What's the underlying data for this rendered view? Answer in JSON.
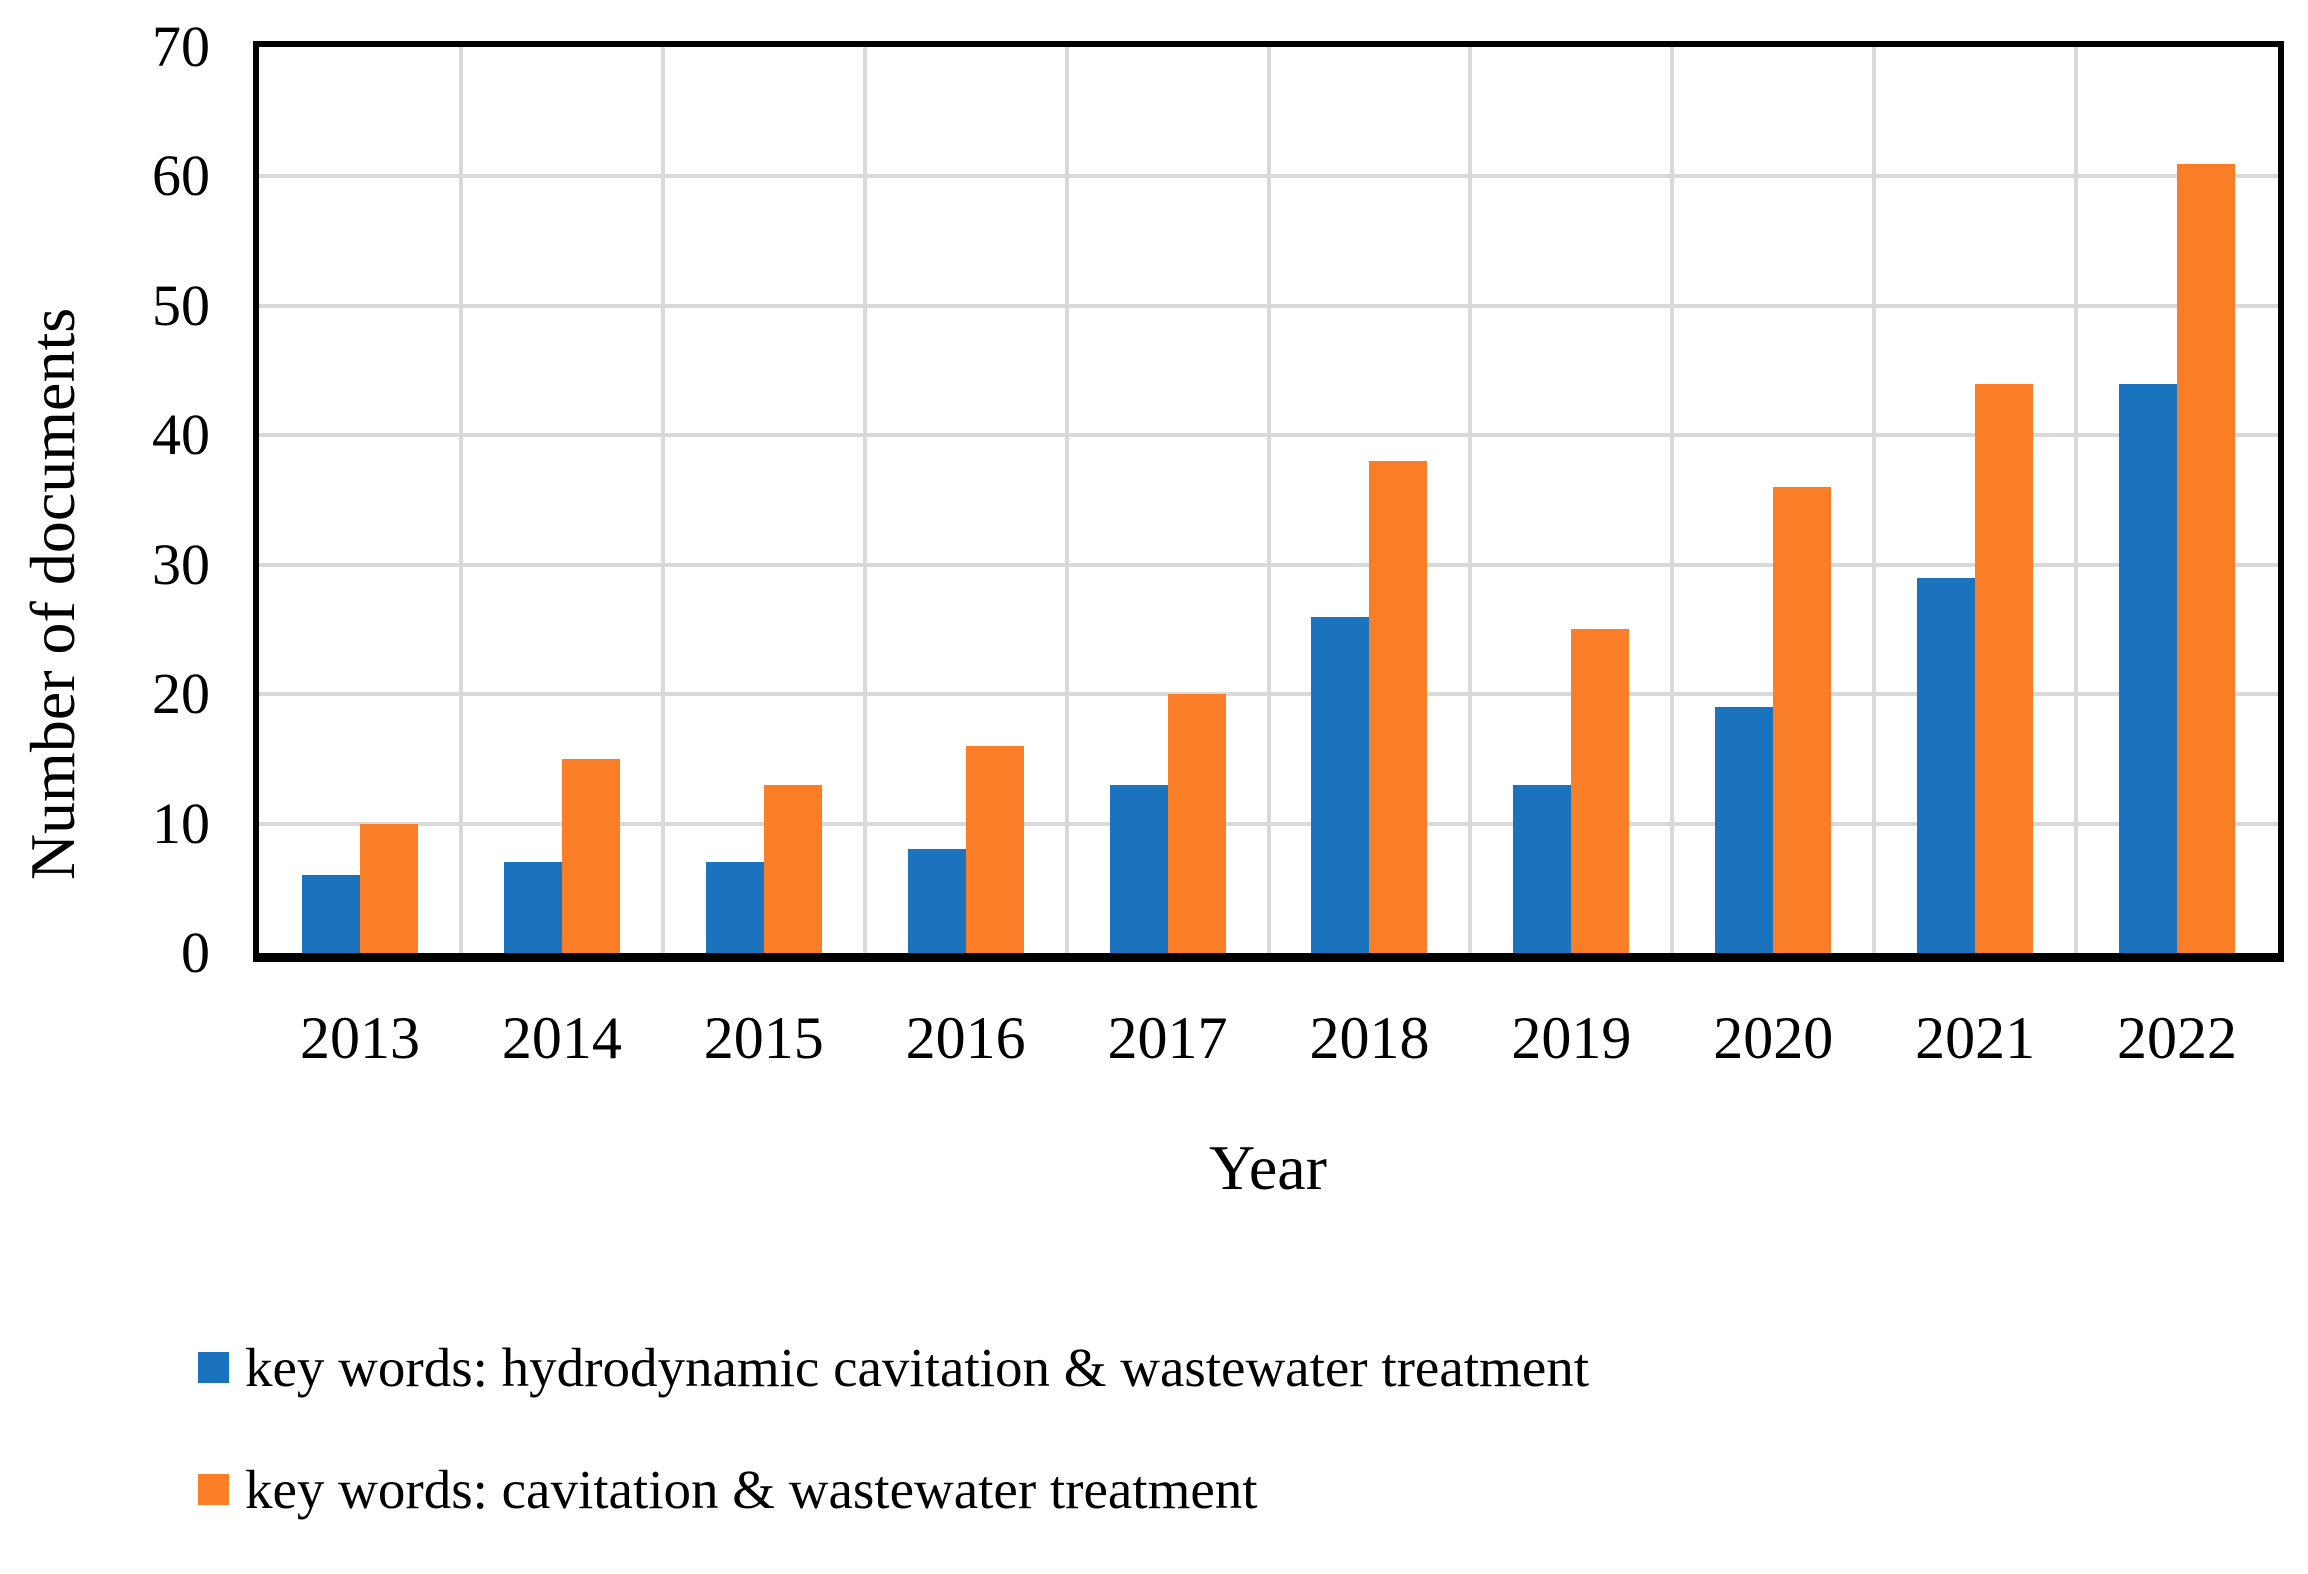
{
  "chart_data": {
    "type": "bar",
    "title": "",
    "categories": [
      "2013",
      "2014",
      "2015",
      "2016",
      "2017",
      "2018",
      "2019",
      "2020",
      "2021",
      "2022"
    ],
    "series": [
      {
        "name": "key words: hydrodynamic cavitation & wastewater treatment",
        "color": "#1B73BE",
        "values": [
          6,
          7,
          7,
          8,
          13,
          26,
          13,
          19,
          29,
          44
        ]
      },
      {
        "name": "key words: cavitation & wastewater treatment",
        "color": "#FA7E28",
        "values": [
          10,
          15,
          13,
          16,
          20,
          38,
          25,
          36,
          44,
          61
        ]
      }
    ],
    "xlabel": "Year",
    "ylabel": "Number of documents",
    "ylim": [
      0,
      70
    ],
    "yticks": [
      0,
      10,
      20,
      30,
      40,
      50,
      60,
      70
    ],
    "grid": true,
    "gridline_color": "#D9D9D9",
    "frame_color": "#000000",
    "legend_position": "bottom-left"
  }
}
